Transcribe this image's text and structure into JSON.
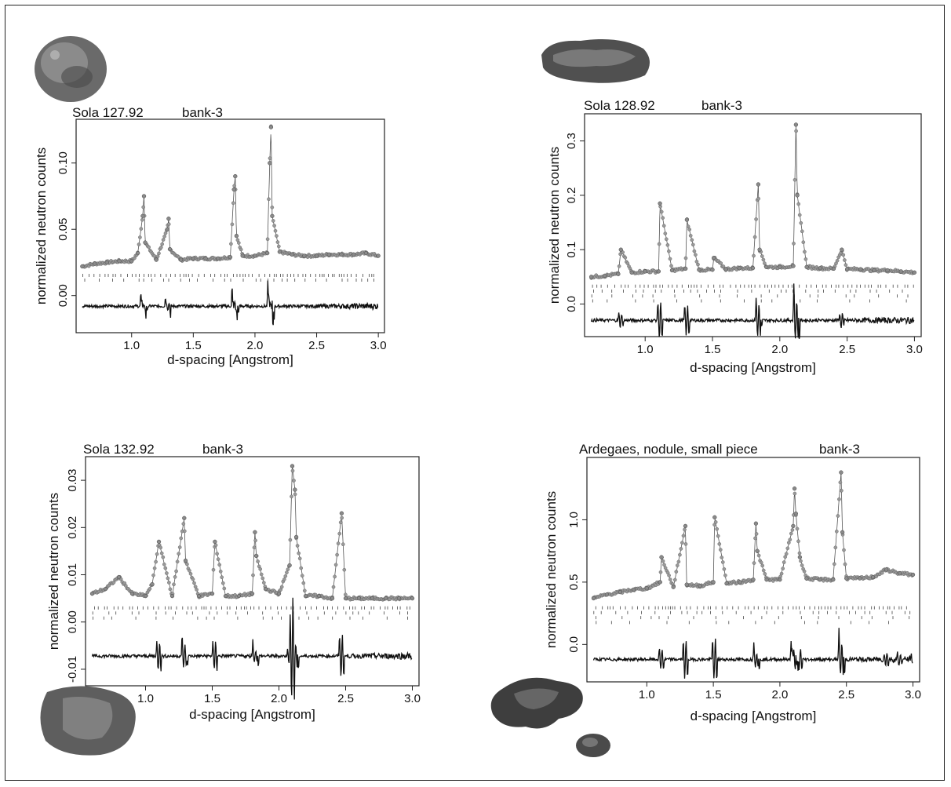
{
  "chart_data": [
    {
      "type": "scatter",
      "title": "Sola 127.92",
      "subtitle": "bank-3",
      "xlabel": "d-spacing [Angstrom]",
      "ylabel": "normalized neutron counts",
      "xlim": [
        0.55,
        3.05
      ],
      "ylim": [
        -0.028,
        0.133
      ],
      "xticks": [
        "1.0",
        "1.5",
        "2.0",
        "2.5",
        "3.0"
      ],
      "yticks": [
        "0.00",
        "0.05",
        "0.10"
      ],
      "grid": false,
      "observed_marker": "gray-dots",
      "series": [
        {
          "role": "observed",
          "x": [
            0.6,
            0.7,
            0.8,
            0.9,
            1.0,
            1.05,
            1.09,
            1.1,
            1.11,
            1.2,
            1.29,
            1.3,
            1.31,
            1.4,
            1.5,
            1.6,
            1.7,
            1.8,
            1.83,
            1.84,
            1.85,
            1.9,
            2.0,
            2.1,
            2.12,
            2.13,
            2.14,
            2.2,
            2.3,
            2.4,
            2.5,
            2.6,
            2.7,
            2.8,
            2.9,
            3.0
          ],
          "y": [
            0.022,
            0.024,
            0.025,
            0.026,
            0.026,
            0.032,
            0.06,
            0.075,
            0.04,
            0.027,
            0.05,
            0.058,
            0.035,
            0.027,
            0.028,
            0.028,
            0.028,
            0.029,
            0.08,
            0.09,
            0.045,
            0.03,
            0.03,
            0.032,
            0.1,
            0.127,
            0.06,
            0.033,
            0.031,
            0.03,
            0.03,
            0.031,
            0.031,
            0.031,
            0.032,
            0.03
          ]
        },
        {
          "role": "difference",
          "offset": -0.008
        }
      ],
      "reflection_rows": 2
    },
    {
      "type": "scatter",
      "title": "Sola 128.92",
      "subtitle": "bank-3",
      "xlabel": "d-spacing [Angstrom]",
      "ylabel": "normalized neutron counts",
      "xlim": [
        0.55,
        3.05
      ],
      "ylim": [
        -0.06,
        0.35
      ],
      "xticks": [
        "1.0",
        "1.5",
        "2.0",
        "2.5",
        "3.0"
      ],
      "yticks": [
        "0.0",
        "0.1",
        "0.2",
        "0.3"
      ],
      "grid": false,
      "observed_marker": "gray-dots",
      "series": [
        {
          "role": "observed",
          "x": [
            0.6,
            0.7,
            0.8,
            0.82,
            0.9,
            1.0,
            1.1,
            1.11,
            1.2,
            1.3,
            1.31,
            1.4,
            1.5,
            1.51,
            1.6,
            1.7,
            1.8,
            1.84,
            1.85,
            1.9,
            2.0,
            2.1,
            2.12,
            2.13,
            2.2,
            2.3,
            2.4,
            2.46,
            2.5,
            2.6,
            2.7,
            2.8,
            2.9,
            3.0
          ],
          "y": [
            0.05,
            0.052,
            0.055,
            0.1,
            0.058,
            0.06,
            0.06,
            0.185,
            0.062,
            0.065,
            0.155,
            0.063,
            0.063,
            0.085,
            0.064,
            0.066,
            0.066,
            0.22,
            0.1,
            0.068,
            0.068,
            0.07,
            0.33,
            0.2,
            0.068,
            0.066,
            0.065,
            0.1,
            0.064,
            0.064,
            0.062,
            0.062,
            0.06,
            0.058
          ]
        },
        {
          "role": "difference",
          "offset": -0.03
        }
      ],
      "reflection_rows": 4
    },
    {
      "type": "scatter",
      "title": "Sola 132.92",
      "subtitle": "bank-3",
      "xlabel": "d-spacing [Angstrom]",
      "ylabel": "normalized neutron counts",
      "xlim": [
        0.55,
        3.05
      ],
      "ylim": [
        -0.0135,
        0.035
      ],
      "xticks": [
        "1.0",
        "1.5",
        "2.0",
        "2.5",
        "3.0"
      ],
      "yticks": [
        "-0.01",
        "0.00",
        "0.01",
        "0.02",
        "0.03"
      ],
      "grid": false,
      "observed_marker": "gray-dots",
      "series": [
        {
          "role": "observed",
          "x": [
            0.6,
            0.7,
            0.8,
            0.9,
            1.0,
            1.05,
            1.1,
            1.2,
            1.29,
            1.3,
            1.4,
            1.5,
            1.52,
            1.6,
            1.7,
            1.8,
            1.82,
            1.83,
            1.9,
            2.0,
            2.08,
            2.1,
            2.12,
            2.13,
            2.2,
            2.3,
            2.4,
            2.47,
            2.5,
            2.6,
            2.7,
            2.8,
            2.9,
            3.0
          ],
          "y": [
            0.006,
            0.007,
            0.0095,
            0.006,
            0.0055,
            0.008,
            0.017,
            0.0055,
            0.022,
            0.013,
            0.0055,
            0.006,
            0.017,
            0.0055,
            0.0055,
            0.006,
            0.019,
            0.014,
            0.007,
            0.006,
            0.012,
            0.033,
            0.028,
            0.018,
            0.0055,
            0.0055,
            0.005,
            0.023,
            0.005,
            0.005,
            0.005,
            0.005,
            0.005,
            0.005
          ]
        },
        {
          "role": "difference",
          "offset": -0.0072
        }
      ],
      "reflection_rows": 3
    },
    {
      "type": "scatter",
      "title": "Ardegaes, nodule, small piece",
      "subtitle": "bank-3",
      "xlabel": "d-spacing [Angstrom]",
      "ylabel": "normalized neutron counts",
      "xlim": [
        0.55,
        3.05
      ],
      "ylim": [
        -0.3,
        1.5
      ],
      "xticks": [
        "1.0",
        "1.5",
        "2.0",
        "2.5",
        "3.0"
      ],
      "yticks": [
        "0.0",
        "0.5",
        "1.0"
      ],
      "grid": false,
      "observed_marker": "gray-dots",
      "series": [
        {
          "role": "observed",
          "x": [
            0.6,
            0.7,
            0.8,
            0.9,
            1.0,
            1.1,
            1.11,
            1.2,
            1.29,
            1.3,
            1.4,
            1.5,
            1.51,
            1.6,
            1.7,
            1.8,
            1.82,
            1.83,
            1.9,
            2.0,
            2.1,
            2.11,
            2.12,
            2.15,
            2.2,
            2.3,
            2.4,
            2.46,
            2.47,
            2.5,
            2.6,
            2.7,
            2.8,
            2.9,
            3.0
          ],
          "y": [
            0.37,
            0.4,
            0.42,
            0.44,
            0.45,
            0.5,
            0.7,
            0.46,
            0.95,
            0.48,
            0.47,
            0.5,
            1.02,
            0.49,
            0.5,
            0.52,
            0.97,
            0.75,
            0.52,
            0.52,
            0.95,
            1.25,
            1.05,
            0.7,
            0.53,
            0.52,
            0.52,
            1.38,
            0.9,
            0.53,
            0.53,
            0.54,
            0.6,
            0.57,
            0.56
          ]
        },
        {
          "role": "difference",
          "offset": -0.12
        }
      ],
      "reflection_rows": 4
    }
  ]
}
